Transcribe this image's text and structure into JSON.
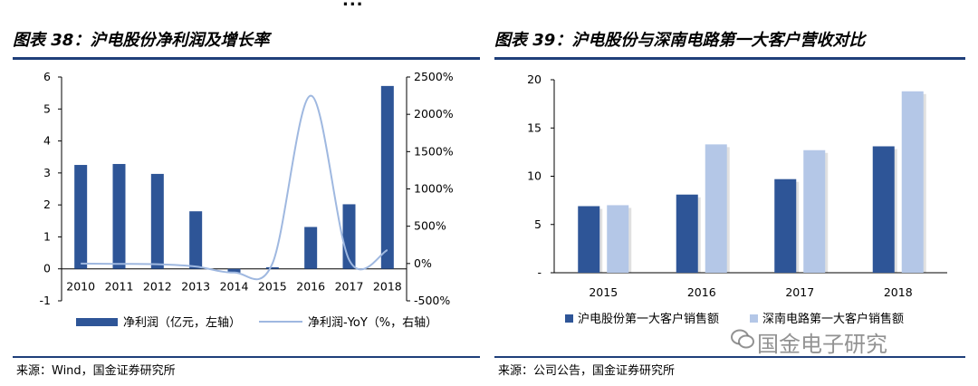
{
  "header_fragment": "...",
  "left_panel": {
    "title": "图表 38：沪电股份净利润及增长率",
    "source": "来源：Wind，国金证券研究所"
  },
  "right_panel": {
    "title": "图表 39：沪电股份与深南电路第一大客户营收对比",
    "source": "来源：公司公告，国金证券研究所"
  },
  "watermark": "国金电子研究",
  "colors": {
    "bar_dark": "#2e5597",
    "bar_light": "#b4c7e7",
    "line": "#9fb8e0",
    "rule": "#1f3f7a"
  },
  "chart_data": [
    {
      "type": "bar+line",
      "title": "图表 38：沪电股份净利润及增长率",
      "categories": [
        "2010",
        "2011",
        "2012",
        "2013",
        "2014",
        "2015",
        "2016",
        "2017",
        "2018"
      ],
      "series": [
        {
          "name": "净利润（亿元，左轴）",
          "type": "bar",
          "axis": "left",
          "values": [
            3.25,
            3.28,
            2.97,
            1.8,
            -0.12,
            0.05,
            1.31,
            2.02,
            5.72
          ]
        },
        {
          "name": "净利润-YoY（%，右轴）",
          "type": "line",
          "axis": "right",
          "values": [
            0,
            -5,
            -10,
            -40,
            -120,
            0,
            2250,
            50,
            180
          ]
        }
      ],
      "ylim_left": [
        -1,
        6
      ],
      "yticks_left": [
        "-1",
        "0",
        "1",
        "2",
        "3",
        "4",
        "5",
        "6"
      ],
      "ylim_right": [
        -500,
        2500
      ],
      "yticks_right": [
        "-500%",
        "0%",
        "500%",
        "1000%",
        "1500%",
        "2000%",
        "2500%"
      ],
      "legend_position": "bottom"
    },
    {
      "type": "bar",
      "title": "图表 39：沪电股份与深南电路第一大客户营收对比",
      "categories": [
        "2015",
        "2016",
        "2017",
        "2018"
      ],
      "series": [
        {
          "name": "沪电股份第一大客户销售额",
          "values": [
            6.9,
            8.1,
            9.7,
            13.1
          ]
        },
        {
          "name": "深南电路第一大客户销售额",
          "values": [
            7.0,
            13.3,
            12.7,
            18.8
          ]
        }
      ],
      "ylim": [
        0,
        20
      ],
      "yticks": [
        "-",
        "5",
        "10",
        "15",
        "20"
      ],
      "legend_position": "bottom"
    }
  ]
}
